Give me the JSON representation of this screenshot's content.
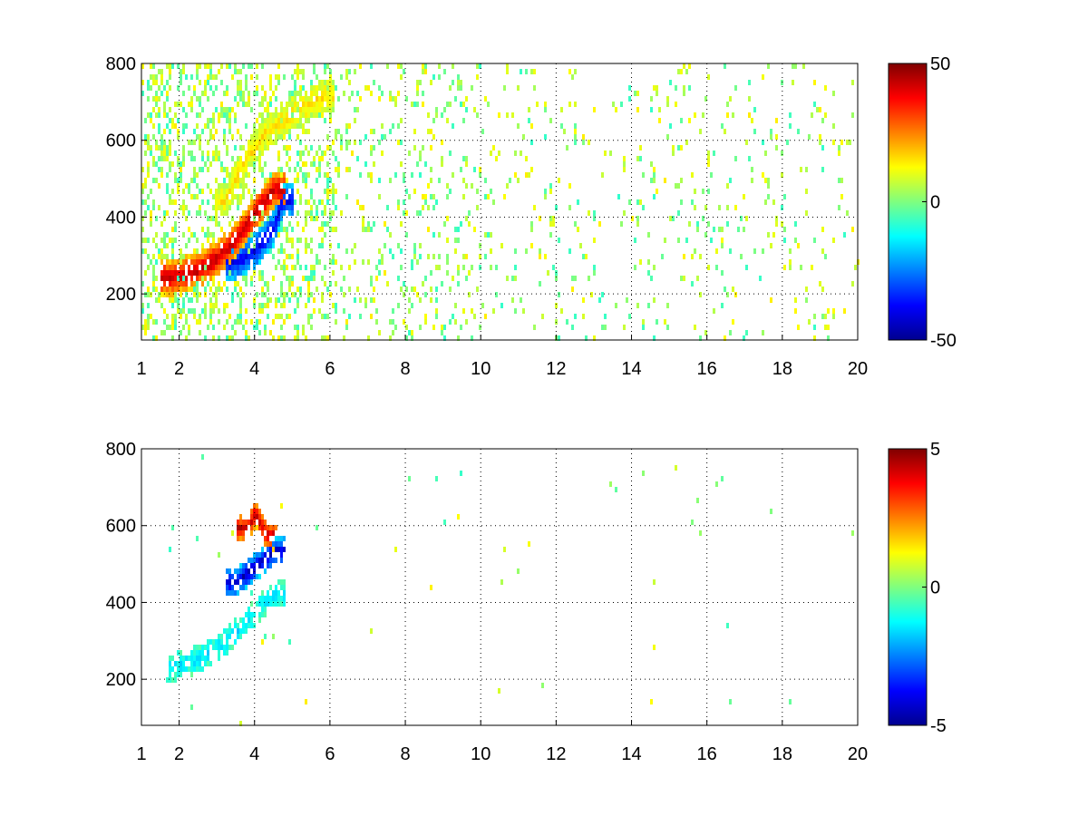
{
  "chart_data": [
    {
      "type": "heatmap",
      "title": "",
      "xlabel": "",
      "ylabel": "",
      "xlim": [
        1,
        20
      ],
      "ylim": [
        80,
        800
      ],
      "xticks": [
        1,
        2,
        4,
        6,
        8,
        10,
        12,
        14,
        16,
        18,
        20
      ],
      "yticks": [
        200,
        400,
        600,
        800
      ],
      "grid": true,
      "colormap": "jet",
      "colorbar": {
        "ticks": [
          -50,
          0,
          50
        ],
        "range": [
          -50,
          50
        ]
      },
      "background": "#ffffff",
      "features": [
        {
          "description_key": "main ridge",
          "x": [
            1.8,
            2.5,
            3.0,
            3.5,
            4.0,
            4.5
          ],
          "y": [
            250,
            270,
            300,
            350,
            420,
            480
          ],
          "value": 45
        },
        {
          "description_key": "lower blue ridge",
          "x": [
            3.5,
            4.0,
            4.5,
            4.7
          ],
          "y": [
            290,
            320,
            380,
            450
          ],
          "value": -40
        },
        {
          "description_key": "upper branch",
          "x": [
            3.2,
            3.7,
            4.2,
            5.0,
            5.8
          ],
          "y": [
            450,
            550,
            620,
            680,
            720
          ],
          "value": 15
        }
      ]
    },
    {
      "type": "heatmap",
      "title": "",
      "xlabel": "",
      "ylabel": "",
      "xlim": [
        1,
        20
      ],
      "ylim": [
        80,
        800
      ],
      "xticks": [
        1,
        2,
        4,
        6,
        8,
        10,
        12,
        14,
        16,
        18,
        20
      ],
      "yticks": [
        200,
        400,
        600,
        800
      ],
      "grid": true,
      "colormap": "jet",
      "colorbar": {
        "ticks": [
          -5,
          0,
          5
        ],
        "range": [
          -5,
          5
        ]
      },
      "background": "#ffffff",
      "features": [
        {
          "description_key": "lower band",
          "x": [
            1.9,
            2.5,
            3.0,
            3.5,
            4.0,
            4.5
          ],
          "y": [
            240,
            260,
            290,
            330,
            380,
            430
          ],
          "value": -1.5
        },
        {
          "description_key": "blue cluster",
          "x": [
            3.5,
            4.0,
            4.5
          ],
          "y": [
            460,
            500,
            540
          ],
          "value": -4.5
        },
        {
          "description_key": "red spots",
          "x": [
            3.8,
            4.0,
            4.3
          ],
          "y": [
            600,
            640,
            580
          ],
          "value": 4.5
        }
      ]
    }
  ]
}
